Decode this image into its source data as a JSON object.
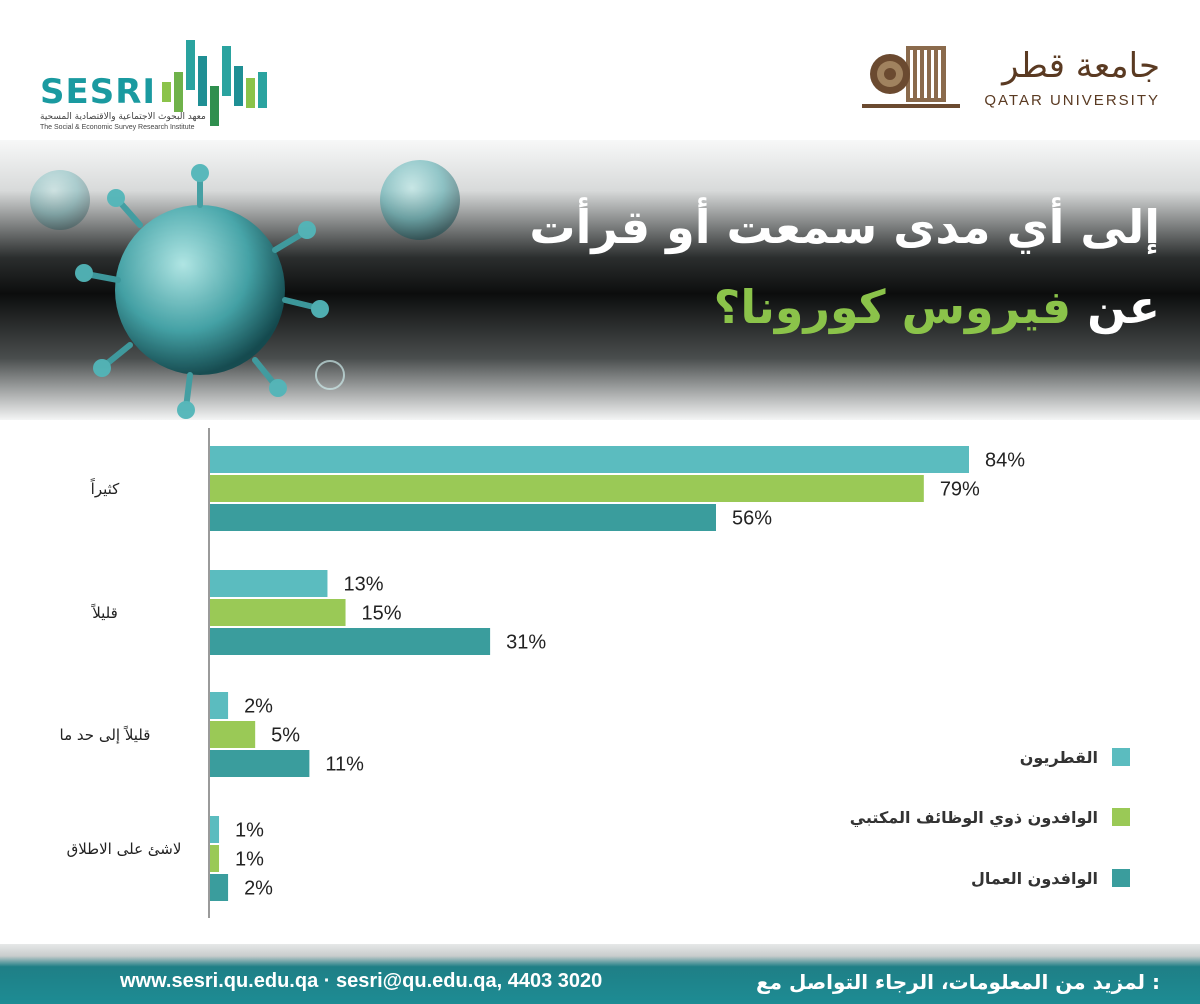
{
  "header": {
    "sesri_name": "SESRI",
    "sesri_subtitle_ar": "معهد البحوث الاجتماعية والاقتصادية المسحية",
    "sesri_subtitle_en": "The Social & Economic Survey Research Institute",
    "qu_name_ar": "جامعة قطر",
    "qu_name_en": "QATAR UNIVERSITY"
  },
  "banner": {
    "title_line1": "إلى أي مدى سمعت أو قرأت",
    "title_line2_prefix": "عن",
    "title_line2_highlight": "فيروس كورونا؟"
  },
  "chart_data": {
    "type": "bar",
    "orientation": "horizontal",
    "categories": [
      "كثيراً",
      "قليلاً",
      "قليلاً إلى حد ما",
      "لاشئ على الاطلاق"
    ],
    "series": [
      {
        "name": "القطريون",
        "values": [
          84,
          13,
          2,
          1
        ],
        "color": "#5bbcbf"
      },
      {
        "name": "الوافدون ذوي الوظائف المكتبي",
        "values": [
          79,
          15,
          5,
          1
        ],
        "color": "#9ac956"
      },
      {
        "name": "الوافدون العمال",
        "values": [
          56,
          31,
          11,
          2
        ],
        "color": "#3a9d9d"
      }
    ],
    "value_suffix": "%",
    "xlim": [
      0,
      100
    ],
    "legend_position": "bottom-right"
  },
  "footer": {
    "contact": "www.sesri.qu.edu.qa · sesri@qu.edu.qa,  4403 3020",
    "contact_ar": ": لمزيد من المعلومات، الرجاء التواصل مع"
  }
}
